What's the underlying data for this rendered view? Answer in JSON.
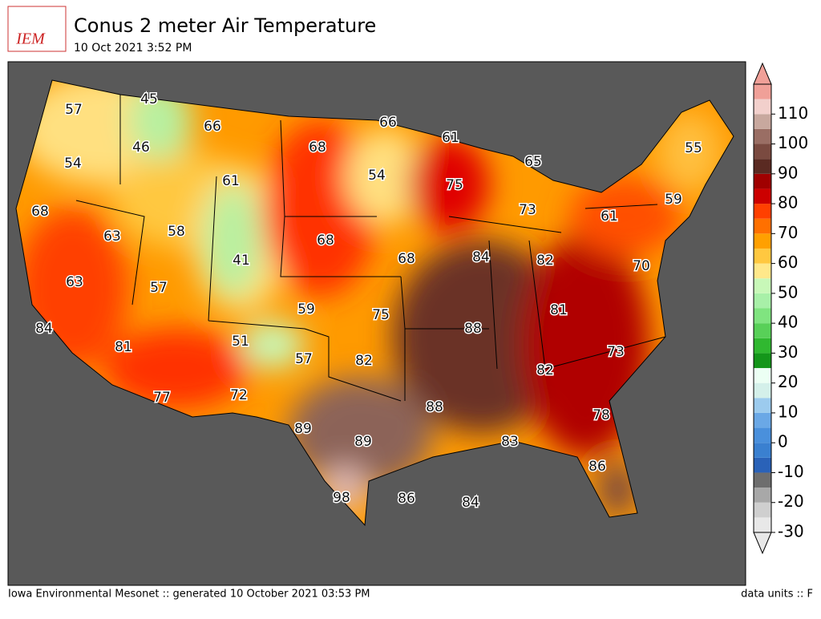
{
  "header": {
    "logo": "IEM",
    "title": "Conus 2 meter Air Temperature",
    "subtitle": "10 Oct 2021 3:52 PM"
  },
  "map": {
    "labels": [
      57,
      45,
      66,
      68,
      66,
      61,
      65,
      55,
      46,
      54,
      54,
      75,
      61,
      59,
      73,
      61,
      68,
      63,
      58,
      68,
      84,
      82,
      70,
      41,
      68,
      63,
      57,
      59,
      75,
      81,
      88,
      84,
      81,
      51,
      57,
      82,
      73,
      82,
      77,
      72,
      88,
      78,
      89,
      89,
      83,
      86,
      98,
      86,
      84
    ]
  },
  "colorbar": {
    "range": [
      -30,
      120
    ],
    "ticks": [
      -30,
      -20,
      -10,
      0,
      10,
      20,
      30,
      40,
      50,
      60,
      70,
      80,
      90,
      100,
      110
    ],
    "colors": [
      "#e8e8e8",
      "#cfcfcf",
      "#a8a8a8",
      "#6e6e6e",
      "#2a62b8",
      "#3a80d0",
      "#4a90dc",
      "#6aa8e6",
      "#9ccbee",
      "#d4f0ea",
      "#ecfff4",
      "#14961a",
      "#30b830",
      "#58d058",
      "#80e480",
      "#a8f0a8",
      "#c8f8b8",
      "#ffe88a",
      "#ffc840",
      "#ffa000",
      "#ff7000",
      "#ff4000",
      "#cc0000",
      "#a00000",
      "#5a2a22",
      "#7a4a40",
      "#9a6e64",
      "#c8a89e",
      "#f2d0cc",
      "#f0a098"
    ]
  },
  "footer": {
    "left": "Iowa Environmental Mesonet :: generated 10 October 2021 03:53 PM",
    "right": "data units :: F"
  }
}
